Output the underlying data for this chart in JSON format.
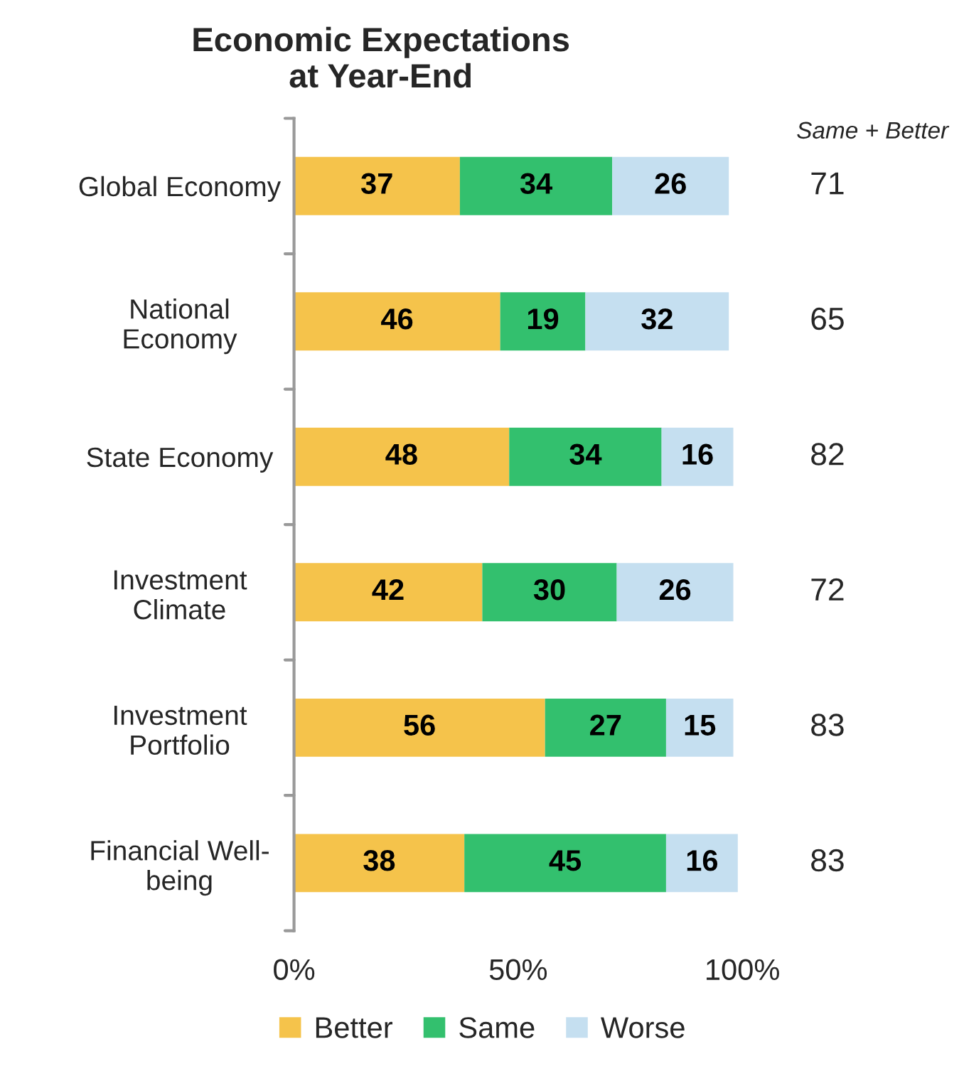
{
  "chart_data": {
    "type": "bar",
    "orientation": "horizontal",
    "stacked": true,
    "title": "Economic Expectations\nat Year-End",
    "categories": [
      "Global Economy",
      "National\nEconomy",
      "State Economy",
      "Investment\nClimate",
      "Investment\nPortfolio",
      "Financial Well-\nbeing"
    ],
    "series": [
      {
        "name": "Better",
        "color": "#f5c34b",
        "values": [
          37,
          46,
          48,
          42,
          56,
          38
        ]
      },
      {
        "name": "Same",
        "color": "#33c06e",
        "values": [
          34,
          19,
          34,
          30,
          27,
          45
        ]
      },
      {
        "name": "Worse",
        "color": "#c5dff0",
        "values": [
          26,
          32,
          16,
          26,
          15,
          16
        ]
      }
    ],
    "xlim": [
      0,
      100
    ],
    "xticks": [
      {
        "value": 0,
        "label": "0%"
      },
      {
        "value": 50,
        "label": "50%"
      },
      {
        "value": 100,
        "label": "100%"
      }
    ],
    "annotations": [
      "Same + Better",
      "71",
      "65",
      "82",
      "72",
      "83",
      "83"
    ],
    "data_labels": true,
    "grid": false,
    "legend": "bottom"
  }
}
